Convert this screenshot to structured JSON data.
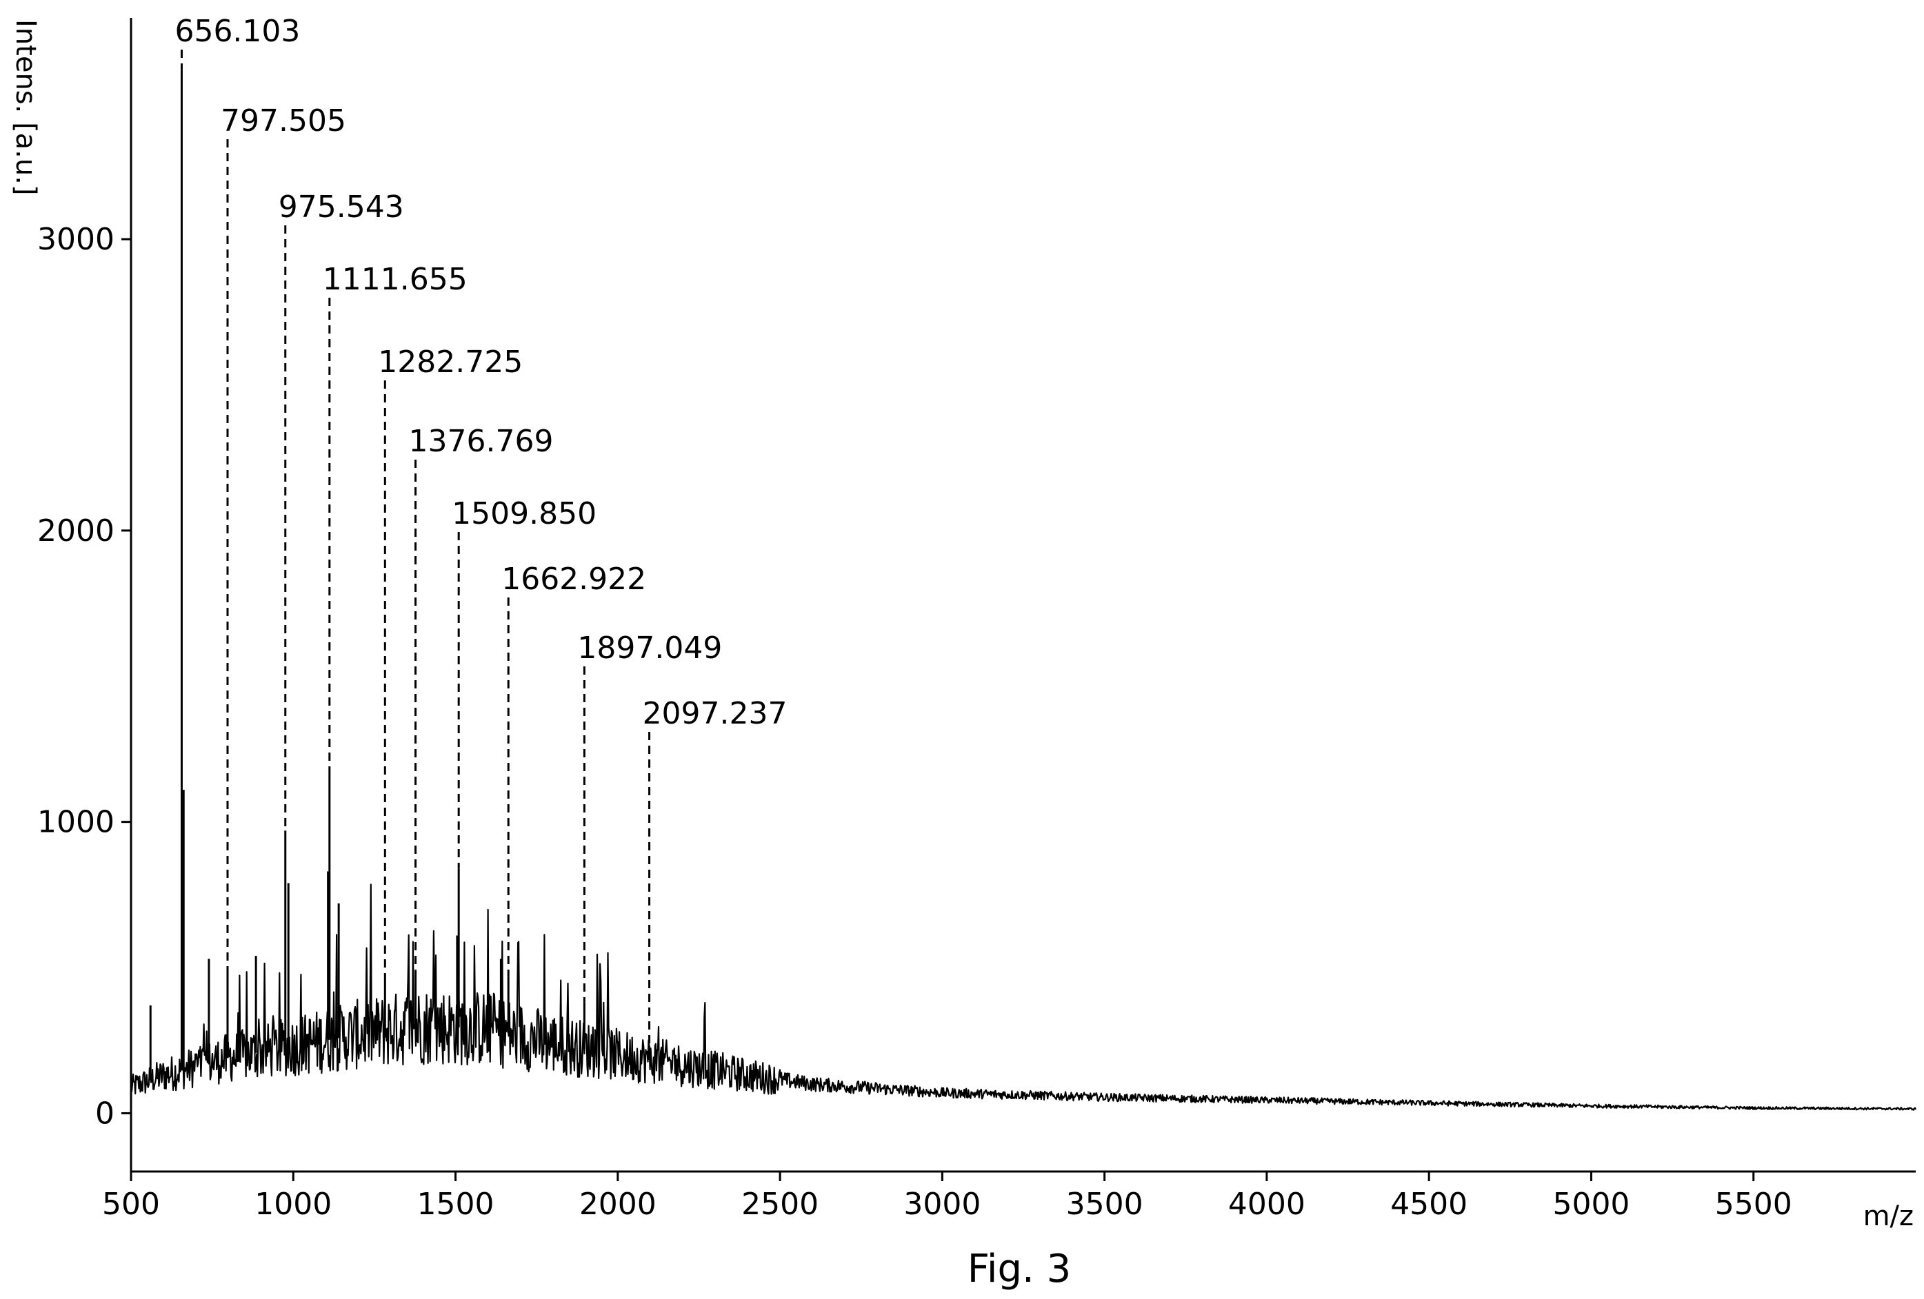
{
  "chart_data": {
    "type": "line",
    "title": "",
    "caption": "Fig. 3",
    "xlabel": "m/z",
    "ylabel": "Intens. [a.u.]",
    "xlim": [
      500,
      6000
    ],
    "ylim": [
      -200,
      3750
    ],
    "x_ticks": [
      500,
      1000,
      1500,
      2000,
      2500,
      3000,
      3500,
      4000,
      4500,
      5000,
      5500
    ],
    "y_ticks": [
      0,
      1000,
      2000,
      3000
    ],
    "grid": false,
    "legend": "none",
    "line_color": "#000000",
    "peaks": [
      {
        "mz": 656.103,
        "label": "656.103",
        "intensity": 3580
      },
      {
        "mz": 797.505,
        "label": "797.505",
        "intensity": 500
      },
      {
        "mz": 975.543,
        "label": "975.543",
        "intensity": 970
      },
      {
        "mz": 1111.655,
        "label": "1111.655",
        "intensity": 1190
      },
      {
        "mz": 1282.725,
        "label": "1282.725",
        "intensity": 460
      },
      {
        "mz": 1376.769,
        "label": "1376.769",
        "intensity": 490
      },
      {
        "mz": 1509.85,
        "label": "1509.850",
        "intensity": 840
      },
      {
        "mz": 1662.922,
        "label": "1662.922",
        "intensity": 470
      },
      {
        "mz": 1897.049,
        "label": "1897.049",
        "intensity": 380
      },
      {
        "mz": 2097.237,
        "label": "2097.237",
        "intensity": 230
      }
    ],
    "minor_peaks": [
      {
        "mz": 560,
        "intensity": 370
      },
      {
        "mz": 662,
        "intensity": 1110
      },
      {
        "mz": 740,
        "intensity": 530
      },
      {
        "mz": 885,
        "intensity": 540
      },
      {
        "mz": 985,
        "intensity": 790
      },
      {
        "mz": 1107,
        "intensity": 830
      },
      {
        "mz": 1140,
        "intensity": 720
      },
      {
        "mz": 1505,
        "intensity": 610
      },
      {
        "mz": 1640,
        "intensity": 530
      }
    ],
    "baseline": [
      {
        "mz": 500,
        "intensity": 90
      },
      {
        "mz": 600,
        "intensity": 130
      },
      {
        "mz": 800,
        "intensity": 190
      },
      {
        "mz": 1000,
        "intensity": 230
      },
      {
        "mz": 1200,
        "intensity": 270
      },
      {
        "mz": 1400,
        "intensity": 300
      },
      {
        "mz": 1600,
        "intensity": 290
      },
      {
        "mz": 1800,
        "intensity": 240
      },
      {
        "mz": 2000,
        "intensity": 200
      },
      {
        "mz": 2200,
        "intensity": 165
      },
      {
        "mz": 2400,
        "intensity": 130
      },
      {
        "mz": 2600,
        "intensity": 100
      },
      {
        "mz": 2800,
        "intensity": 85
      },
      {
        "mz": 3000,
        "intensity": 70
      },
      {
        "mz": 3500,
        "intensity": 55
      },
      {
        "mz": 4000,
        "intensity": 45
      },
      {
        "mz": 4500,
        "intensity": 35
      },
      {
        "mz": 5000,
        "intensity": 25
      },
      {
        "mz": 5500,
        "intensity": 18
      },
      {
        "mz": 6000,
        "intensity": 15
      }
    ]
  }
}
